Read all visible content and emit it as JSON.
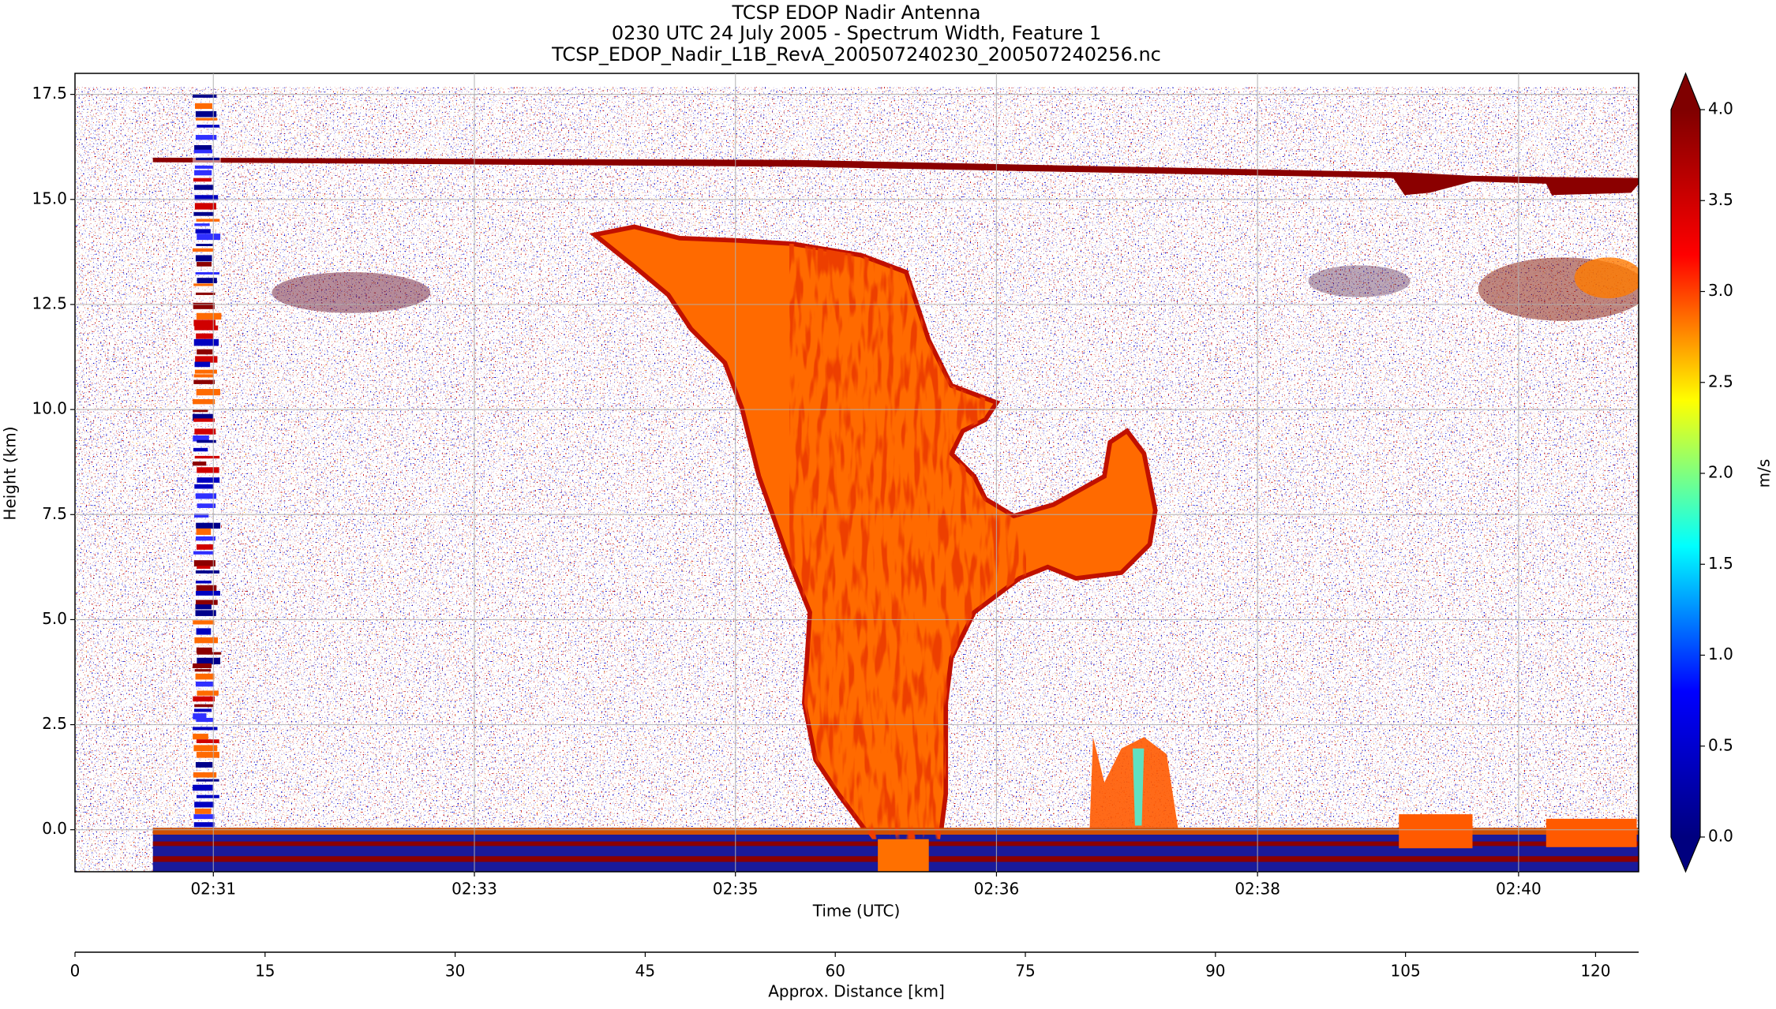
{
  "chart_data": {
    "type": "radar-curtain",
    "title_lines": [
      "TCSP EDOP Nadir Antenna",
      "0230 UTC 24 July 2005 - Spectrum Width, Feature 1",
      "TCSP_EDOP_Nadir_L1B_RevA_200507240230_200507240256.nc"
    ],
    "ylabel": "Height (km)",
    "xlabel": "Time (UTC)",
    "x2label": "Approx. Distance [km]",
    "colorbar_label": "m/s",
    "ylim": [
      -1,
      18
    ],
    "yticks": [
      {
        "value": 0,
        "label": "0.0"
      },
      2.5,
      {
        "value": 5,
        "label": "5.0"
      },
      7.5,
      {
        "value": 10,
        "label": "10.0"
      },
      12.5,
      {
        "value": 15,
        "label": "15.0"
      },
      17.5
    ],
    "xlim": [
      -0.53,
      5.46
    ],
    "xticks": [
      {
        "value": 0,
        "label": "02:31"
      },
      {
        "value": 1,
        "label": "02:33"
      },
      {
        "value": 2,
        "label": "02:35"
      },
      {
        "value": 3,
        "label": "02:36"
      },
      {
        "value": 4,
        "label": "02:38"
      },
      {
        "value": 5,
        "label": "02:40"
      }
    ],
    "x2lim": [
      0,
      123.4
    ],
    "x2ticks": [
      0,
      15,
      30,
      45,
      60,
      75,
      90,
      105,
      120
    ],
    "clim": [
      0,
      4
    ],
    "cticks": [
      {
        "value": 0,
        "label": "0.0"
      },
      0.5,
      {
        "value": 1,
        "label": "1.0"
      },
      1.5,
      {
        "value": 2,
        "label": "2.0"
      },
      2.5,
      {
        "value": 3,
        "label": "3.0"
      },
      3.5,
      {
        "value": 4,
        "label": "4.0"
      }
    ],
    "colormap": [
      "#00007f",
      "#0000ff",
      "#00ffff",
      "#ffff00",
      "#ff0000",
      "#7f0000"
    ],
    "grid": true
  }
}
